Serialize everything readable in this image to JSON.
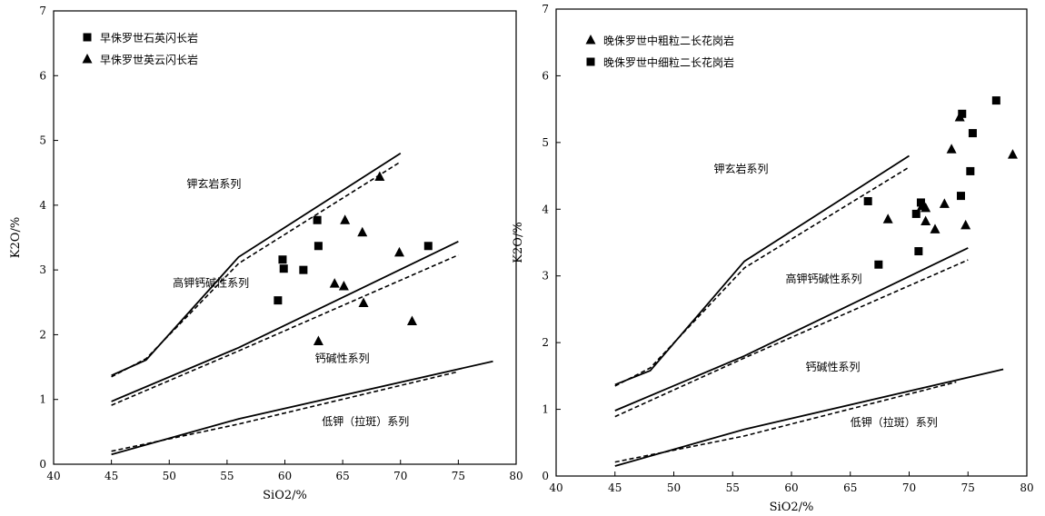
{
  "chart_data": [
    {
      "type": "scatter",
      "xlabel": "SiO2/%",
      "ylabel": "K2O/%",
      "xlim": [
        40,
        80
      ],
      "ylim": [
        0,
        7
      ],
      "x_ticks": [
        "40",
        "45",
        "50",
        "55",
        "60",
        "65",
        "70",
        "75",
        "80"
      ],
      "y_ticks": [
        "0",
        "1",
        "2",
        "3",
        "4",
        "5",
        "6",
        "7"
      ],
      "series": [
        {
          "name": "早侏罗世石英闪长岩",
          "marker": "square",
          "points": [
            [
              59.4,
              2.53
            ],
            [
              59.8,
              3.16
            ],
            [
              59.9,
              3.02
            ],
            [
              61.6,
              3.0
            ],
            [
              62.8,
              3.77
            ],
            [
              62.9,
              3.37
            ],
            [
              72.4,
              3.37
            ]
          ]
        },
        {
          "name": "早侏罗世英云闪长岩",
          "marker": "triangle",
          "points": [
            [
              62.9,
              1.9
            ],
            [
              64.3,
              2.79
            ],
            [
              65.1,
              2.75
            ],
            [
              65.2,
              3.77
            ],
            [
              66.7,
              3.58
            ],
            [
              66.8,
              2.49
            ],
            [
              68.2,
              4.44
            ],
            [
              69.9,
              3.27
            ],
            [
              71.0,
              2.21
            ]
          ]
        }
      ],
      "boundaries": [
        {
          "style": "solid",
          "points": [
            [
              45,
              1.37
            ],
            [
              48,
              1.61
            ],
            [
              56,
              3.2
            ],
            [
              70,
              4.8
            ]
          ]
        },
        {
          "style": "dashed",
          "points": [
            [
              45,
              1.35
            ],
            [
              48,
              1.63
            ],
            [
              56,
              3.1
            ],
            [
              70,
              4.67
            ]
          ]
        },
        {
          "style": "solid",
          "points": [
            [
              45,
              0.97
            ],
            [
              56,
              1.8
            ],
            [
              75,
              3.44
            ]
          ]
        },
        {
          "style": "dashed",
          "points": [
            [
              45,
              0.91
            ],
            [
              56,
              1.75
            ],
            [
              75,
              3.23
            ]
          ]
        },
        {
          "style": "solid",
          "points": [
            [
              45,
              0.15
            ],
            [
              56,
              0.7
            ],
            [
              78,
              1.59
            ]
          ]
        },
        {
          "style": "dashed",
          "points": [
            [
              45,
              0.2
            ],
            [
              56,
              0.62
            ],
            [
              75,
              1.43
            ]
          ]
        }
      ],
      "region_labels": [
        {
          "text": "钾玄岩系列",
          "x": 51.5,
          "y": 4.27
        },
        {
          "text": "高钾钙碱性系列",
          "x": 50.3,
          "y": 2.74
        },
        {
          "text": "钙碱性系列",
          "x": 62.6,
          "y": 1.58
        },
        {
          "text": "低钾（拉斑）系列",
          "x": 63.2,
          "y": 0.6
        }
      ],
      "legend": "top-left"
    },
    {
      "type": "scatter",
      "xlabel": "SiO2/%",
      "ylabel": "K2O/%",
      "xlim": [
        40,
        80
      ],
      "ylim": [
        0,
        7
      ],
      "x_ticks": [
        "40",
        "45",
        "50",
        "55",
        "60",
        "65",
        "70",
        "75",
        "80"
      ],
      "y_ticks": [
        "0",
        "1",
        "2",
        "3",
        "4",
        "5",
        "6",
        "7"
      ],
      "series": [
        {
          "name": "晚侏罗世中粗粒二长花岗岩",
          "marker": "triangle",
          "points": [
            [
              68.2,
              3.85
            ],
            [
              71.1,
              4.05
            ],
            [
              71.4,
              4.02
            ],
            [
              71.4,
              3.82
            ],
            [
              72.2,
              3.7
            ],
            [
              73.0,
              4.08
            ],
            [
              73.6,
              4.9
            ],
            [
              74.3,
              5.38
            ],
            [
              74.8,
              3.76
            ],
            [
              78.8,
              4.82
            ]
          ]
        },
        {
          "name": "晚侏罗世中细粒二长花岗岩",
          "marker": "square",
          "points": [
            [
              66.5,
              4.12
            ],
            [
              67.4,
              3.17
            ],
            [
              70.6,
              3.93
            ],
            [
              70.8,
              3.37
            ],
            [
              71.0,
              4.1
            ],
            [
              74.4,
              4.2
            ],
            [
              74.5,
              5.43
            ],
            [
              75.2,
              4.57
            ],
            [
              75.4,
              5.14
            ],
            [
              77.4,
              5.63
            ]
          ]
        }
      ],
      "boundaries": [
        {
          "style": "solid",
          "points": [
            [
              45,
              1.37
            ],
            [
              48,
              1.58
            ],
            [
              56,
              3.22
            ],
            [
              70,
              4.8
            ]
          ]
        },
        {
          "style": "dashed",
          "points": [
            [
              45,
              1.35
            ],
            [
              48,
              1.62
            ],
            [
              56,
              3.12
            ],
            [
              70,
              4.63
            ]
          ]
        },
        {
          "style": "solid",
          "points": [
            [
              45,
              0.98
            ],
            [
              56,
              1.8
            ],
            [
              75,
              3.42
            ]
          ]
        },
        {
          "style": "dashed",
          "points": [
            [
              45,
              0.89
            ],
            [
              56,
              1.77
            ],
            [
              75,
              3.24
            ]
          ]
        },
        {
          "style": "solid",
          "points": [
            [
              45,
              0.15
            ],
            [
              56,
              0.7
            ],
            [
              78,
              1.6
            ]
          ]
        },
        {
          "style": "dashed",
          "points": [
            [
              45,
              0.21
            ],
            [
              56,
              0.6
            ],
            [
              74,
              1.41
            ]
          ]
        }
      ],
      "region_labels": [
        {
          "text": "钾玄岩系列",
          "x": 53.4,
          "y": 4.55
        },
        {
          "text": "高钾钙碱性系列",
          "x": 59.5,
          "y": 2.9
        },
        {
          "text": "钙碱性系列",
          "x": 61.2,
          "y": 1.58
        },
        {
          "text": "低钾（拉斑）系列",
          "x": 65.0,
          "y": 0.75
        }
      ],
      "legend": "top-left"
    }
  ]
}
